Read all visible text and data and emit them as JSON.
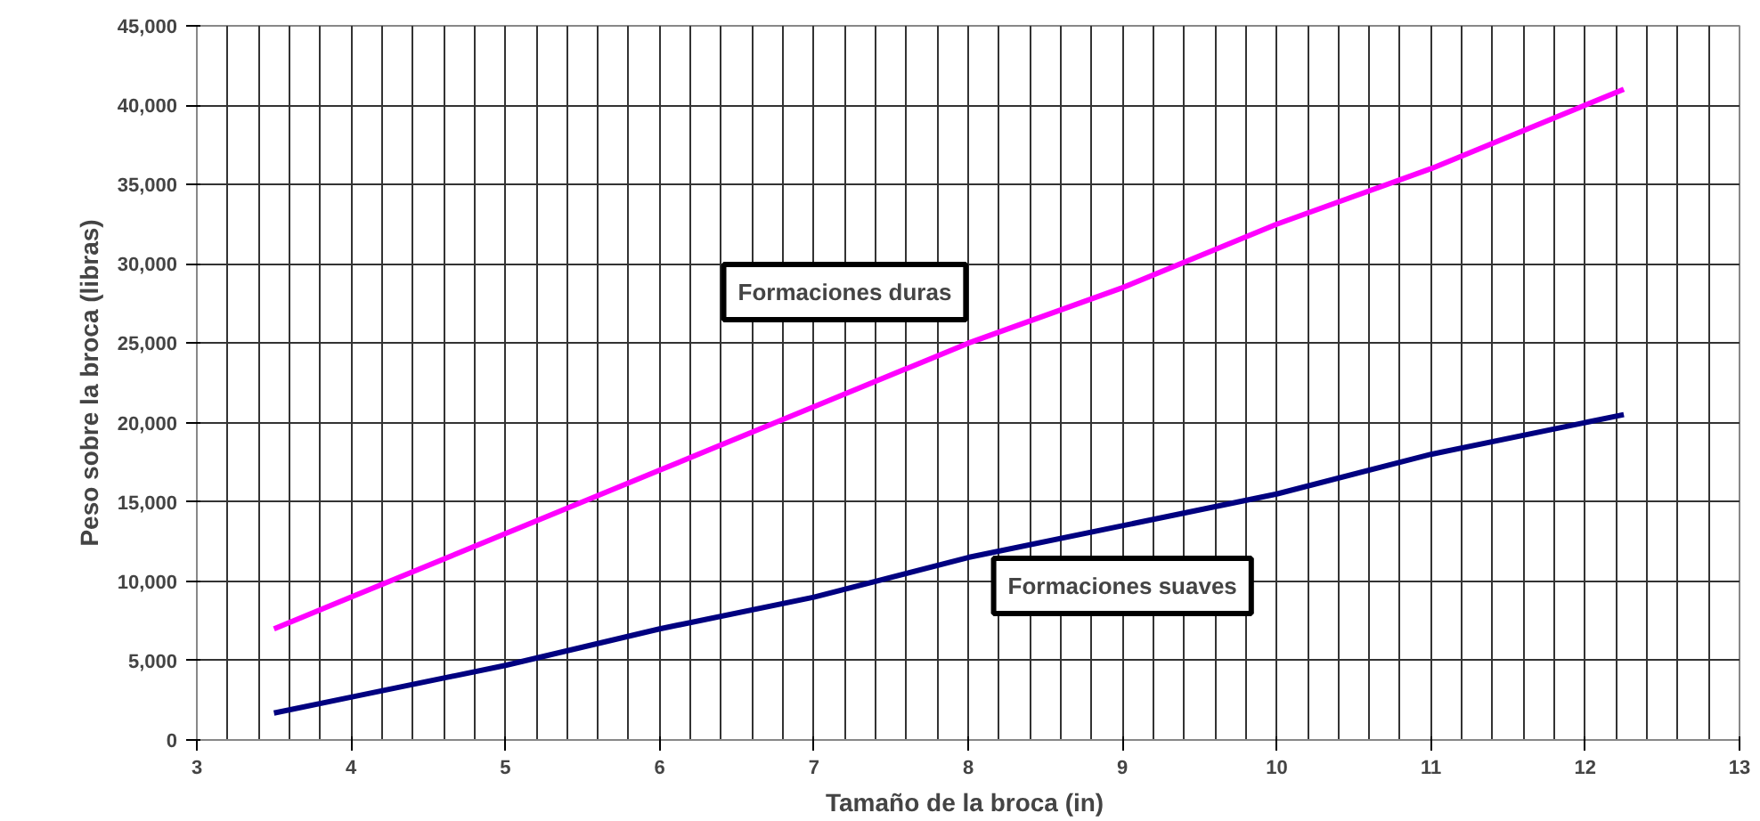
{
  "chart_data": {
    "type": "line",
    "xlabel": "Tamaño  de la broca (in)",
    "ylabel": "Peso sobre la broca (libras)",
    "x": [
      3.5,
      4,
      5,
      6,
      7,
      8,
      9,
      10,
      11,
      12.25
    ],
    "series": [
      {
        "name": "Formaciones duras",
        "color": "#ff00ff",
        "values": [
          7000,
          9000,
          13000,
          17000,
          21000,
          25000,
          28500,
          32500,
          36000,
          41000
        ]
      },
      {
        "name": "Formaciones suaves",
        "color": "#000080",
        "values": [
          1700,
          2700,
          4700,
          7000,
          9000,
          11500,
          13500,
          15500,
          18000,
          20500
        ]
      }
    ],
    "xlim": [
      3,
      13
    ],
    "ylim": [
      0,
      45000
    ],
    "xticks": [
      3,
      4,
      5,
      6,
      7,
      8,
      9,
      10,
      11,
      12,
      13
    ],
    "yticks": [
      0,
      {
        "value": 5000,
        "label": "5,000"
      },
      {
        "value": 10000,
        "label": "10,000"
      },
      {
        "value": 15000,
        "label": "15,000"
      },
      {
        "value": 20000,
        "label": "20,000"
      },
      {
        "value": 25000,
        "label": "25,000"
      },
      {
        "value": 30000,
        "label": "30,000"
      },
      {
        "value": 35000,
        "label": "35,000"
      },
      {
        "value": 40000,
        "label": "40,000"
      },
      {
        "value": 45000,
        "label": "45,000"
      }
    ],
    "grid": true,
    "marker": "none",
    "line_style": "solid"
  }
}
